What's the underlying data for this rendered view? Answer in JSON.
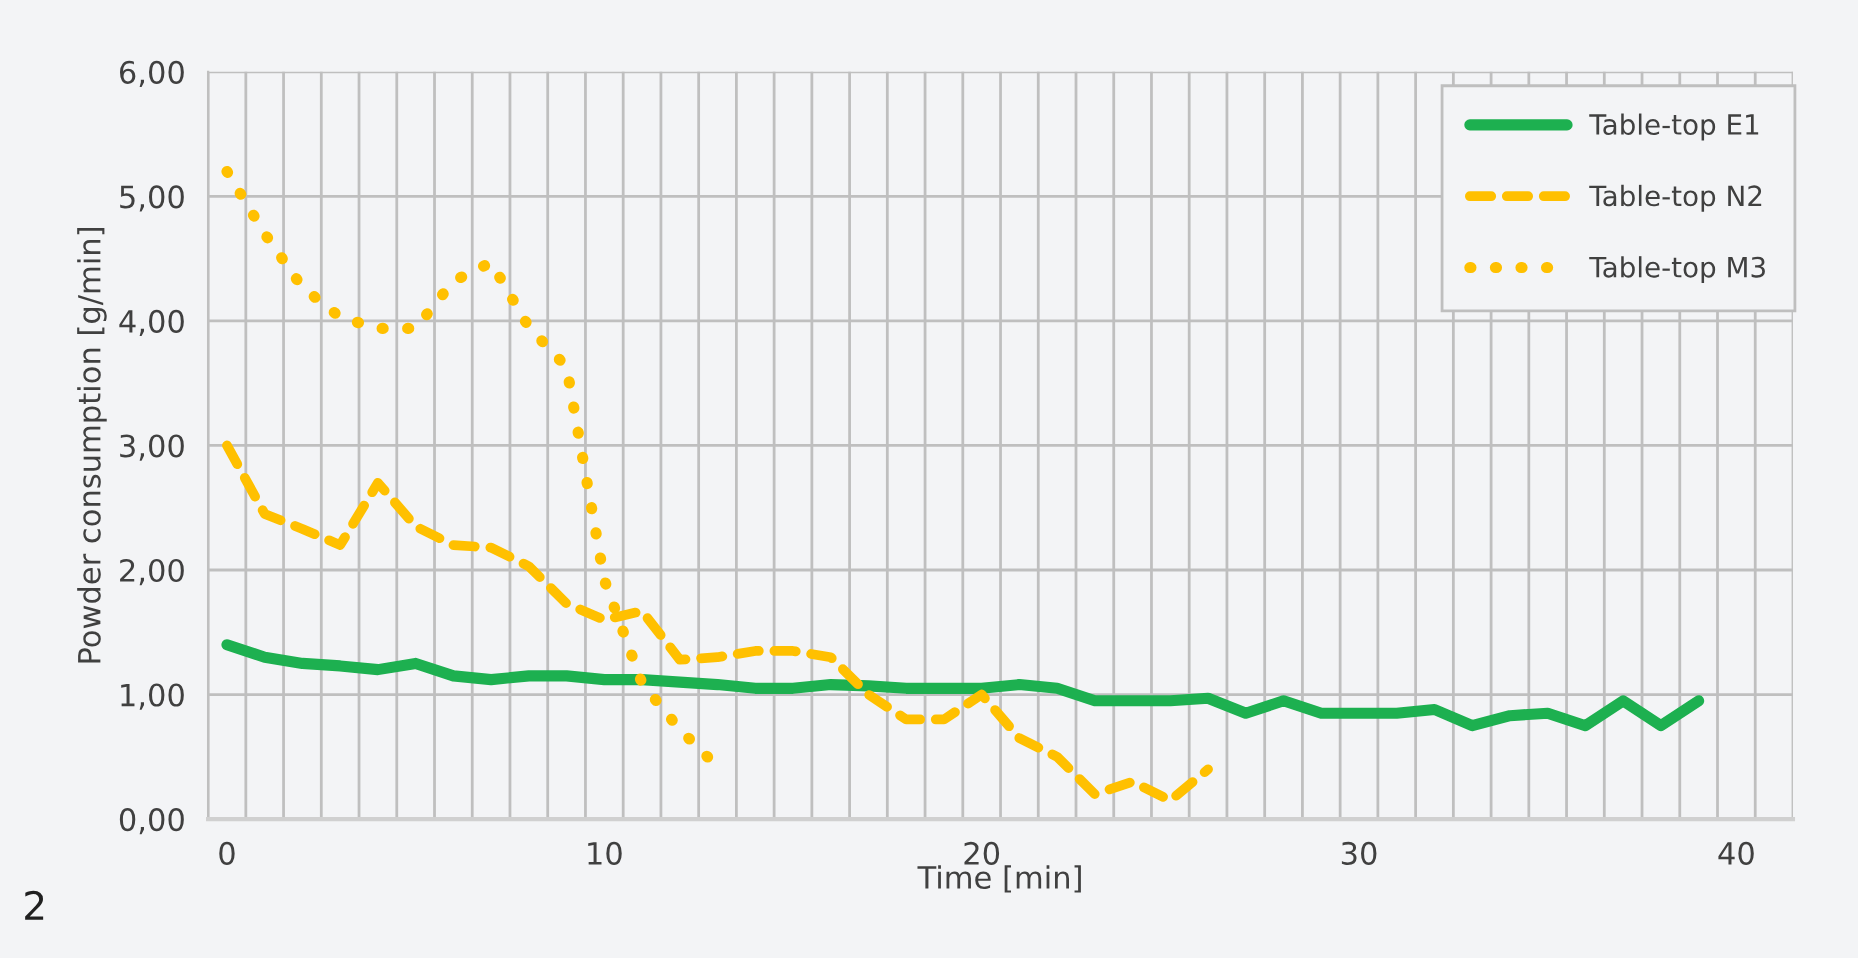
{
  "chart_data": {
    "type": "line",
    "xlabel": "Time [min]",
    "ylabel": "Powder consumption [g/min]",
    "xlim": [
      -0.5,
      41.5
    ],
    "xticks": [
      0,
      10,
      20,
      30,
      40
    ],
    "ylim": [
      0,
      6
    ],
    "yticks": [
      {
        "value": 0,
        "label": "0,00"
      },
      {
        "value": 1,
        "label": "1,00"
      },
      {
        "value": 2,
        "label": "2,00"
      },
      {
        "value": 3,
        "label": "3,00"
      },
      {
        "value": 4,
        "label": "4,00"
      },
      {
        "value": 5,
        "label": "5,00"
      },
      {
        "value": 6,
        "label": "6,00"
      }
    ],
    "grid": true,
    "legend": "top right",
    "annotations": [
      "2"
    ],
    "series": [
      {
        "name": "Table-top E1",
        "color": "#1db050",
        "line_style": "solid",
        "x": [
          0,
          1,
          2,
          3,
          4,
          5,
          6,
          7,
          8,
          9,
          10,
          11,
          12,
          13,
          14,
          15,
          16,
          17,
          18,
          19,
          20,
          21,
          22,
          23,
          24,
          25,
          26,
          27,
          28,
          29,
          30,
          31,
          32,
          33,
          34,
          35,
          36,
          37,
          38,
          39
        ],
        "values": [
          1.4,
          1.3,
          1.25,
          1.23,
          1.2,
          1.25,
          1.15,
          1.12,
          1.15,
          1.15,
          1.12,
          1.12,
          1.1,
          1.08,
          1.05,
          1.05,
          1.08,
          1.07,
          1.05,
          1.05,
          1.05,
          1.08,
          1.05,
          0.95,
          0.95,
          0.95,
          0.97,
          0.85,
          0.95,
          0.85,
          0.85,
          0.85,
          0.88,
          0.75,
          0.83,
          0.85,
          0.75,
          0.95,
          0.75,
          0.95
        ]
      },
      {
        "name": "Table-top N2",
        "color": "#ffc000",
        "line_style": "dashed",
        "x": [
          0,
          1,
          2,
          3,
          4,
          5,
          6,
          7,
          8,
          9,
          10,
          11,
          12,
          13,
          14,
          15,
          16,
          17,
          18,
          19,
          20,
          21,
          22,
          23,
          24,
          25,
          26
        ],
        "values": [
          3.0,
          2.45,
          2.33,
          2.2,
          2.7,
          2.35,
          2.2,
          2.18,
          2.03,
          1.73,
          1.6,
          1.67,
          1.28,
          1.3,
          1.35,
          1.35,
          1.3,
          1.0,
          0.8,
          0.8,
          1.0,
          0.65,
          0.5,
          0.2,
          0.3,
          0.15,
          0.4
        ]
      },
      {
        "name": "Table-top M3",
        "color": "#ffc000",
        "line_style": "dotted",
        "x": [
          0,
          1,
          2,
          3,
          4,
          5,
          6,
          7,
          8,
          9,
          10,
          11,
          12,
          13
        ],
        "values": [
          5.2,
          4.7,
          4.27,
          4.03,
          3.94,
          3.94,
          4.32,
          4.47,
          3.95,
          3.63,
          1.92,
          1.09,
          0.72,
          0.42
        ]
      }
    ]
  }
}
